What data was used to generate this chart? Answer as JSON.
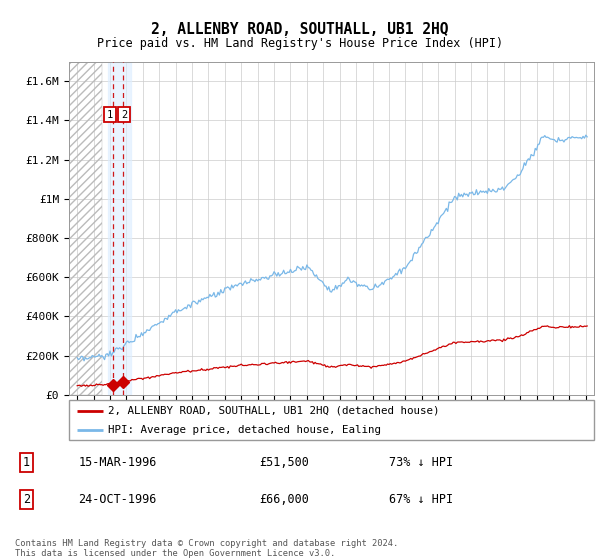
{
  "title": "2, ALLENBY ROAD, SOUTHALL, UB1 2HQ",
  "subtitle": "Price paid vs. HM Land Registry's House Price Index (HPI)",
  "legend_line1": "2, ALLENBY ROAD, SOUTHALL, UB1 2HQ (detached house)",
  "legend_line2": "HPI: Average price, detached house, Ealing",
  "footer": "Contains HM Land Registry data © Crown copyright and database right 2024.\nThis data is licensed under the Open Government Licence v3.0.",
  "table": [
    {
      "num": "1",
      "date": "15-MAR-1996",
      "price": "£51,500",
      "hpi": "73% ↓ HPI"
    },
    {
      "num": "2",
      "date": "24-OCT-1996",
      "price": "£66,000",
      "hpi": "67% ↓ HPI"
    }
  ],
  "sale_dates": [
    1996.204,
    1996.804
  ],
  "sale_prices": [
    51500,
    66000
  ],
  "sale_labels": [
    "1",
    "2"
  ],
  "hpi_color": "#7ab8e8",
  "price_color": "#cc0000",
  "dashed_color": "#cc0000",
  "shade_color": "#ddeeff",
  "ylim": [
    0,
    1700000
  ],
  "yticks": [
    0,
    200000,
    400000,
    600000,
    800000,
    1000000,
    1200000,
    1400000,
    1600000
  ],
  "ytick_labels": [
    "£0",
    "£200K",
    "£400K",
    "£600K",
    "£800K",
    "£1M",
    "£1.2M",
    "£1.4M",
    "£1.6M"
  ],
  "xlim_start": 1993.5,
  "xlim_end": 2025.5,
  "hatch_end": 1995.5,
  "shade_start": 1995.9,
  "shade_end": 1997.3
}
